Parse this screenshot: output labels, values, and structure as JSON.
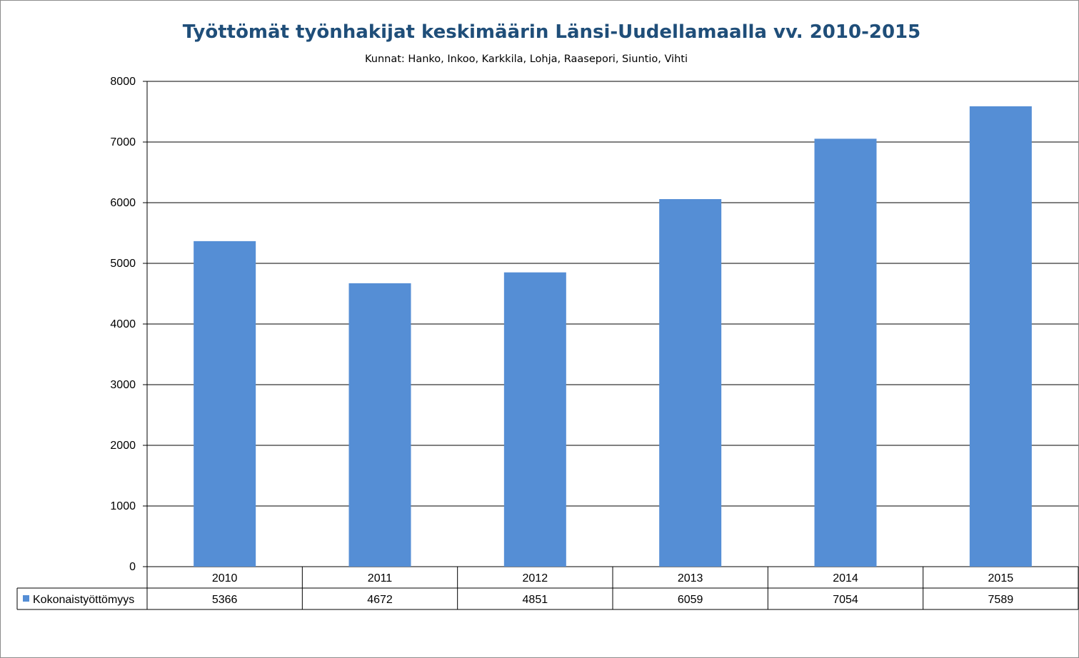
{
  "chart_data": {
    "type": "bar",
    "title": "Työttömät työnhakijat keskimäärin Länsi-Uudellamaalla vv. 2010-2015",
    "subtitle": "Kunnat: Hanko, Inkoo, Karkkila, Lohja, Raasepori, Siuntio, Vihti",
    "categories": [
      "2010",
      "2011",
      "2012",
      "2013",
      "2014",
      "2015"
    ],
    "series": [
      {
        "name": "Kokonaistyöttömyys",
        "values": [
          5366,
          4672,
          4851,
          6059,
          7054,
          7589
        ],
        "color": "#558ed5"
      }
    ],
    "ylim": [
      0,
      8000
    ],
    "yticks": [
      0,
      1000,
      2000,
      3000,
      4000,
      5000,
      6000,
      7000,
      8000
    ],
    "grid": true,
    "data_table": true
  }
}
